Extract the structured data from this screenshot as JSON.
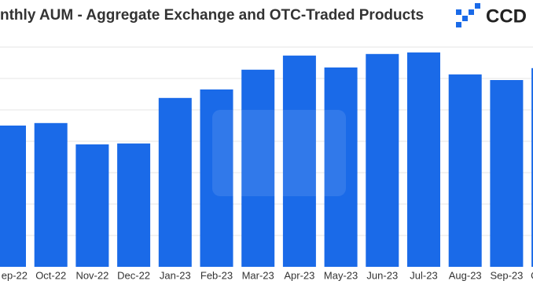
{
  "chart_data": {
    "type": "bar",
    "title": "nthly AUM - Aggregate Exchange and OTC-Traded Products",
    "logo": "CCD",
    "categories": [
      "ep-22",
      "Oct-22",
      "Nov-22",
      "Dec-22",
      "Jan-23",
      "Feb-23",
      "Mar-23",
      "Apr-23",
      "May-23",
      "Jun-23",
      "Jul-23",
      "Aug-23",
      "Sep-23",
      "O"
    ],
    "values": [
      4.5,
      4.58,
      3.9,
      3.93,
      5.38,
      5.65,
      6.28,
      6.73,
      6.35,
      6.78,
      6.83,
      6.13,
      5.95,
      6.33
    ],
    "color": "#1a6ae8",
    "ylim": [
      0,
      7
    ]
  }
}
